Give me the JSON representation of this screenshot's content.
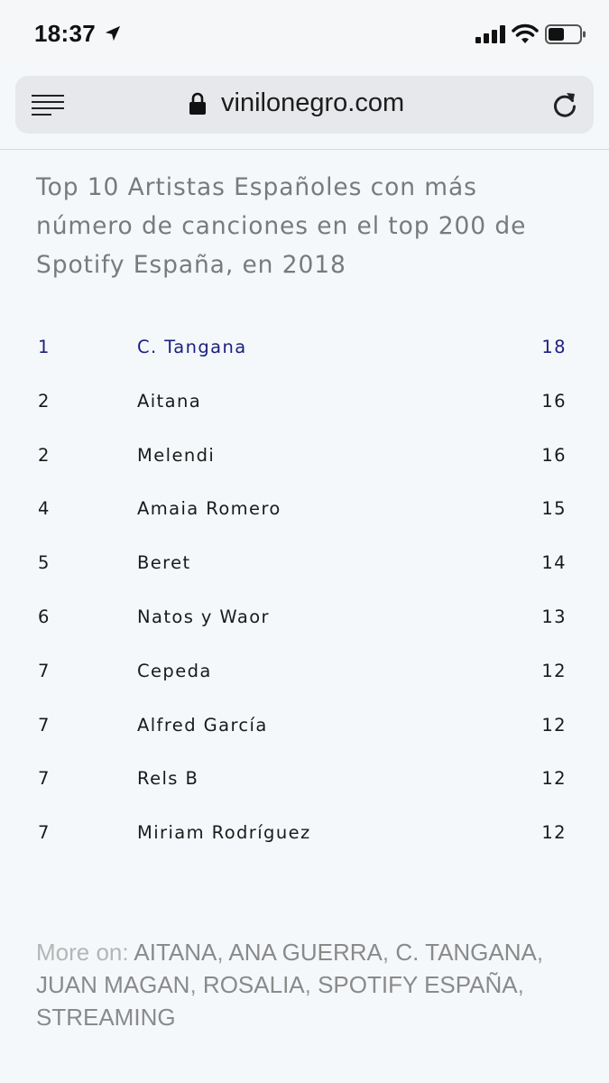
{
  "status_bar": {
    "time": "18:37"
  },
  "browser": {
    "url": "vinilonegro.com"
  },
  "article": {
    "heading": "Top 10 Artistas Españoles con más número de canciones en el top 200 de Spotify España, en 2018",
    "rows": [
      {
        "rank": "1",
        "artist": "C. Tangana",
        "songs": "18"
      },
      {
        "rank": "2",
        "artist": "Aitana",
        "songs": "16"
      },
      {
        "rank": "2",
        "artist": "Melendi",
        "songs": "16"
      },
      {
        "rank": "4",
        "artist": "Amaia Romero",
        "songs": "15"
      },
      {
        "rank": "5",
        "artist": "Beret",
        "songs": "14"
      },
      {
        "rank": "6",
        "artist": "Natos y Waor",
        "songs": "13"
      },
      {
        "rank": "7",
        "artist": "Cepeda",
        "songs": "12"
      },
      {
        "rank": "7",
        "artist": "Alfred García",
        "songs": "12"
      },
      {
        "rank": "7",
        "artist": "Rels B",
        "songs": "12"
      },
      {
        "rank": "7",
        "artist": "Miriam Rodríguez",
        "songs": "12"
      }
    ],
    "more_on_label": "More on:",
    "tags": [
      "AITANA",
      "ANA GUERRA",
      "C. TANGANA",
      "JUAN MAGAN",
      "ROSALIA",
      "SPOTIFY ESPAÑA",
      "STREAMING"
    ]
  },
  "colors": {
    "page_background": "#f5f8fb",
    "highlight_row": "#1b1f7e",
    "heading_text": "#7a7a7a",
    "tag_text": "#8a8a8a"
  },
  "icons": {
    "location": "location-arrow-icon",
    "signal": "cellular-signal-icon",
    "wifi": "wifi-icon",
    "battery": "battery-icon",
    "menu": "menu-lines-icon",
    "lock": "lock-icon",
    "reload": "reload-icon"
  }
}
